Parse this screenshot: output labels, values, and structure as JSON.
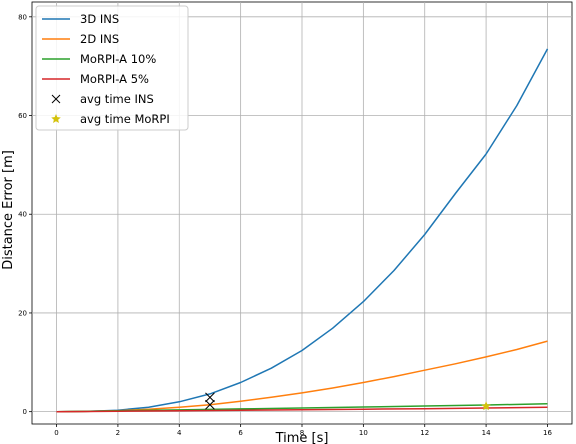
{
  "chart_data": {
    "type": "line",
    "xlabel": "Time [s]",
    "ylabel": "Distance Error [m]",
    "xlim": [
      -0.8,
      16.8
    ],
    "ylim": [
      -2.5,
      83
    ],
    "xticks": [
      0,
      2,
      4,
      6,
      8,
      10,
      12,
      14,
      16
    ],
    "yticks": [
      0,
      20,
      40,
      60,
      80
    ],
    "grid": true,
    "legend_position": "top-left",
    "series": [
      {
        "name": "3D INS",
        "color": "#1f77b4",
        "x": [
          0,
          1,
          2,
          3,
          4,
          5,
          6,
          7,
          8,
          9,
          10,
          11,
          12,
          13,
          14,
          15,
          16
        ],
        "y": [
          0,
          0.05,
          0.3,
          0.9,
          2.0,
          3.6,
          5.9,
          8.8,
          12.4,
          16.9,
          22.3,
          28.6,
          35.9,
          44.2,
          52.2,
          62.0,
          73.5
        ]
      },
      {
        "name": "2D INS",
        "color": "#ff7f0e",
        "x": [
          0,
          1,
          2,
          3,
          4,
          5,
          6,
          7,
          8,
          9,
          10,
          11,
          12,
          13,
          14,
          15,
          16
        ],
        "y": [
          0,
          0.05,
          0.2,
          0.5,
          0.9,
          1.4,
          2.1,
          2.9,
          3.8,
          4.8,
          5.9,
          7.1,
          8.4,
          9.7,
          11.1,
          12.6,
          14.3
        ]
      },
      {
        "name": "MoRPI-A 10%",
        "color": "#2ca02c",
        "x": [
          0,
          2,
          4,
          6,
          8,
          10,
          12,
          14,
          16
        ],
        "y": [
          0,
          0.2,
          0.35,
          0.55,
          0.75,
          0.95,
          1.15,
          1.35,
          1.6
        ]
      },
      {
        "name": "MoRPI-A 5%",
        "color": "#d62728",
        "x": [
          0,
          2,
          4,
          6,
          8,
          10,
          12,
          14,
          16
        ],
        "y": [
          0,
          0.1,
          0.2,
          0.3,
          0.4,
          0.5,
          0.6,
          0.75,
          0.9
        ]
      }
    ],
    "markers": [
      {
        "name": "avg time INS",
        "symbol": "x",
        "color": "#000000",
        "points": [
          {
            "x": 5,
            "y": 2.9
          },
          {
            "x": 5,
            "y": 1.4
          }
        ]
      },
      {
        "name": "avg time MoRPI",
        "symbol": "star",
        "color": "#d4c20b",
        "points": [
          {
            "x": 14,
            "y": 1.1
          }
        ]
      }
    ]
  }
}
